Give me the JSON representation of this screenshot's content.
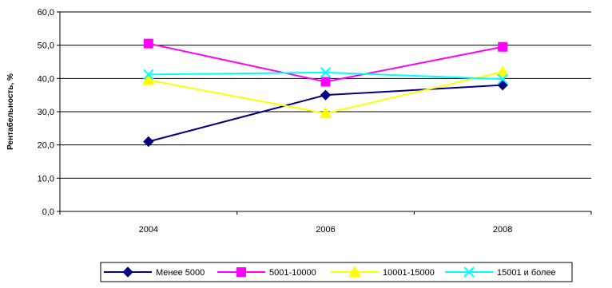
{
  "chart_data": {
    "type": "line",
    "categories": [
      "2004",
      "2006",
      "2008"
    ],
    "ylabel": "Рентабельность, %",
    "ylim": [
      0,
      60
    ],
    "yticks": [
      "0,0",
      "10,0",
      "20,0",
      "30,0",
      "40,0",
      "50,0",
      "60,0"
    ],
    "ytick_values": [
      0,
      10,
      20,
      30,
      40,
      50,
      60
    ],
    "grid": true,
    "legend_position": "bottom",
    "series": [
      {
        "name": "Менее 5000",
        "values": [
          21.0,
          35.0,
          38.0
        ],
        "color": "#000080",
        "marker": "diamond"
      },
      {
        "name": "5001-10000",
        "values": [
          50.5,
          39.0,
          49.5
        ],
        "color": "#FF00FF",
        "marker": "square"
      },
      {
        "name": "10001-15000",
        "values": [
          39.5,
          29.5,
          42.0
        ],
        "color": "#FFFF00",
        "marker": "triangle"
      },
      {
        "name": "15001 и более",
        "values": [
          41.2,
          41.8,
          39.8
        ],
        "color": "#00FFFF",
        "marker": "x"
      }
    ]
  }
}
